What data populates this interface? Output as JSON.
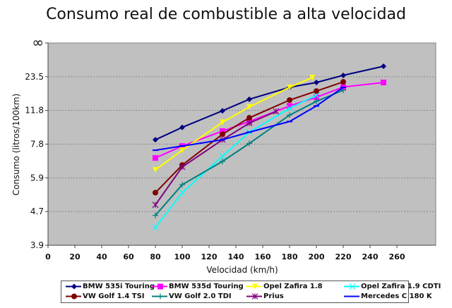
{
  "chart_data": {
    "type": "line",
    "title": "Consumo real de combustible a alta velocidad",
    "xlabel": "Velocidad (km/h)",
    "ylabel": "Consumo (litros/100km)",
    "xlim": [
      0,
      288
    ],
    "x_ticks": [
      "0",
      "20",
      "40",
      "60",
      "80",
      "100",
      "120",
      "140",
      "160",
      "180",
      "200",
      "220",
      "240",
      "260"
    ],
    "y_scale": "reciprocal (km/l linear)",
    "y_ticks": [
      "∞",
      "23.5",
      "11.8",
      "7.8",
      "5.9",
      "4.7",
      "3.9"
    ],
    "grid": true,
    "legend_position": "bottom",
    "series": [
      {
        "name": "BMW 535i Touring",
        "color": "#000080",
        "marker": "diamond",
        "x": [
          80,
          100,
          130,
          150,
          180,
          200,
          220,
          250
        ],
        "y": [
          8.2,
          9.4,
          11.7,
          14.1,
          17.9,
          20.1,
          24.5,
          34.1
        ]
      },
      {
        "name": "BMW 535d Touring",
        "color": "#ff00ff",
        "marker": "square",
        "x": [
          80,
          100,
          130,
          150,
          180,
          200,
          220,
          250
        ],
        "y": [
          6.9,
          7.7,
          9.0,
          10.1,
          12.6,
          14.6,
          18.0,
          20.1
        ]
      },
      {
        "name": "Opel Zafira 1.8",
        "color": "#ffff00",
        "marker": "triangle",
        "x": [
          80,
          100,
          130,
          150,
          180,
          197
        ],
        "y": [
          6.25,
          7.4,
          10.0,
          12.4,
          17.9,
          22.9
        ]
      },
      {
        "name": "Opel Zafira 1.9 CDTI",
        "color": "#00ffff",
        "marker": "x",
        "x": [
          80,
          100,
          130,
          150,
          180,
          200
        ],
        "y": [
          4.3,
          5.3,
          7.0,
          8.9,
          12.1,
          15.2
        ]
      },
      {
        "name": "VW Golf 1.4 TSI",
        "color": "#800000",
        "marker": "circle",
        "x": [
          80,
          100,
          130,
          150,
          180,
          200,
          220
        ],
        "y": [
          5.3,
          6.5,
          8.7,
          10.6,
          13.9,
          16.5,
          20.4
        ]
      },
      {
        "name": "VW Golf 2.0 TDI",
        "color": "#008080",
        "marker": "plus",
        "x": [
          80,
          100,
          130,
          150,
          180,
          200,
          220
        ],
        "y": [
          4.6,
          5.6,
          6.7,
          7.9,
          11.0,
          13.6,
          16.8
        ]
      },
      {
        "name": "Prius",
        "color": "#800080",
        "marker": "star",
        "x": [
          80,
          100,
          130,
          150,
          170
        ],
        "y": [
          4.9,
          6.4,
          8.2,
          9.9,
          11.6
        ]
      },
      {
        "name": "Mercedes C 180 K",
        "color": "#0000ff",
        "marker": "dash",
        "x": [
          80,
          100,
          130,
          150,
          180,
          200,
          220
        ],
        "y": [
          7.4,
          7.7,
          8.2,
          8.9,
          10.1,
          12.6,
          17.9
        ]
      }
    ]
  }
}
